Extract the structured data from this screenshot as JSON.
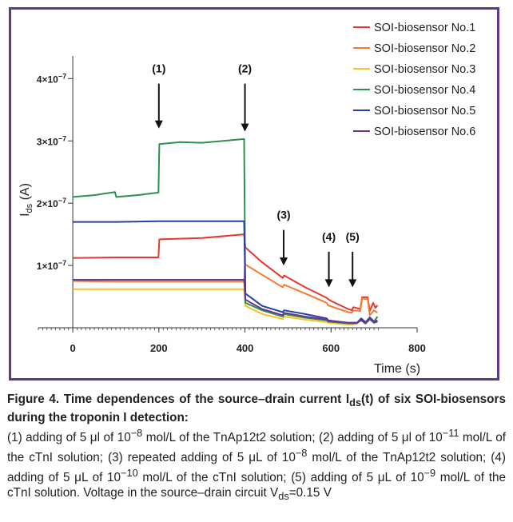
{
  "chart_data": {
    "type": "line",
    "xlabel": "Time (s)",
    "ylabel_main": "I",
    "ylabel_sub": "ds",
    "ylabel_unit": " (A)",
    "xlim": [
      -80,
      800
    ],
    "ylim": [
      0,
      4.3e-07
    ],
    "x_ticks": [
      0,
      200,
      400,
      600,
      800
    ],
    "x_tick_labels": [
      "0",
      "200",
      "400",
      "600",
      "800"
    ],
    "y_ticks": [
      1e-07,
      2e-07,
      3e-07,
      4e-07
    ],
    "y_tick_labels": [
      {
        "coef": "1×10",
        "exp": "−7"
      },
      {
        "coef": "2×10",
        "exp": "−7"
      },
      {
        "coef": "3×10",
        "exp": "−7"
      },
      {
        "coef": "4×10",
        "exp": "−7"
      }
    ],
    "legend_position": "top-right",
    "annotations": [
      {
        "label": "(1)",
        "x": 200,
        "y": 4.1e-07,
        "arrow_to": 3.2e-07
      },
      {
        "label": "(2)",
        "x": 400,
        "y": 4.1e-07,
        "arrow_to": 3.15e-07
      },
      {
        "label": "(3)",
        "x": 490,
        "y": 1.75e-07,
        "arrow_to": 1e-07
      },
      {
        "label": "(4)",
        "x": 595,
        "y": 1.4e-07,
        "arrow_to": 6.5e-08
      },
      {
        "label": "(5)",
        "x": 650,
        "y": 1.4e-07,
        "arrow_to": 6.5e-08
      }
    ],
    "series": [
      {
        "name": "SOI-biosensor No.1",
        "color": "#e8372c",
        "points": [
          [
            0,
            1.12e-07
          ],
          [
            100,
            1.13e-07
          ],
          [
            199,
            1.13e-07
          ],
          [
            201,
            1.42e-07
          ],
          [
            300,
            1.44e-07
          ],
          [
            398,
            1.5e-07
          ],
          [
            401,
            1.29e-07
          ],
          [
            440,
            1.05e-07
          ],
          [
            488,
            8e-08
          ],
          [
            491,
            8.4e-08
          ],
          [
            540,
            6.5e-08
          ],
          [
            590,
            4.8e-08
          ],
          [
            593,
            4.6e-08
          ],
          [
            600,
            4.3e-08
          ],
          [
            640,
            3e-08
          ],
          [
            648,
            2.8e-08
          ],
          [
            652,
            3.3e-08
          ],
          [
            668,
            3e-08
          ],
          [
            672,
            4.9e-08
          ],
          [
            685,
            4.9e-08
          ],
          [
            690,
            2.7e-08
          ],
          [
            698,
            4e-08
          ],
          [
            703,
            3.2e-08
          ],
          [
            708,
            3.6e-08
          ]
        ]
      },
      {
        "name": "SOI-biosensor No.2",
        "color": "#f47a37",
        "points": [
          [
            0,
            7.5e-08
          ],
          [
            100,
            7.4e-08
          ],
          [
            200,
            7.4e-08
          ],
          [
            300,
            7.4e-08
          ],
          [
            398,
            7.4e-08
          ],
          [
            400,
            1.02e-07
          ],
          [
            440,
            8.5e-08
          ],
          [
            488,
            6.5e-08
          ],
          [
            491,
            6.9e-08
          ],
          [
            540,
            5.5e-08
          ],
          [
            590,
            4e-08
          ],
          [
            593,
            3.6e-08
          ],
          [
            640,
            2.5e-08
          ],
          [
            648,
            2.4e-08
          ],
          [
            652,
            2.8e-08
          ],
          [
            668,
            2.7e-08
          ],
          [
            672,
            4.7e-08
          ],
          [
            685,
            4.6e-08
          ],
          [
            690,
            2e-08
          ],
          [
            700,
            2.8e-08
          ],
          [
            708,
            2.4e-08
          ]
        ]
      },
      {
        "name": "SOI-biosensor No.3",
        "color": "#f5c426",
        "points": [
          [
            0,
            6.2e-08
          ],
          [
            100,
            6.2e-08
          ],
          [
            200,
            6.2e-08
          ],
          [
            300,
            6.2e-08
          ],
          [
            398,
            6.2e-08
          ],
          [
            401,
            3.5e-08
          ],
          [
            440,
            2.2e-08
          ],
          [
            488,
            1.4e-08
          ],
          [
            491,
            1.8e-08
          ],
          [
            540,
            1.3e-08
          ],
          [
            590,
            9e-09
          ],
          [
            593,
            8e-09
          ],
          [
            640,
            5e-09
          ],
          [
            650,
            5e-09
          ],
          [
            660,
            7e-09
          ],
          [
            670,
            1.2e-08
          ],
          [
            680,
            6e-09
          ],
          [
            690,
            1.3e-08
          ],
          [
            700,
            8e-09
          ],
          [
            708,
            1e-08
          ]
        ]
      },
      {
        "name": "SOI-biosensor No.4",
        "color": "#2f8f4e",
        "points": [
          [
            0,
            2.1e-07
          ],
          [
            50,
            2.13e-07
          ],
          [
            98,
            2.18e-07
          ],
          [
            101,
            2.1e-07
          ],
          [
            150,
            2.13e-07
          ],
          [
            199,
            2.17e-07
          ],
          [
            201,
            2.95e-07
          ],
          [
            250,
            2.98e-07
          ],
          [
            300,
            2.97e-07
          ],
          [
            350,
            3e-07
          ],
          [
            398,
            3.03e-07
          ],
          [
            401,
            4e-08
          ],
          [
            440,
            2.8e-08
          ],
          [
            488,
            1.8e-08
          ],
          [
            491,
            2.2e-08
          ],
          [
            540,
            1.6e-08
          ],
          [
            590,
            1.2e-08
          ],
          [
            593,
            1e-08
          ],
          [
            640,
            7e-09
          ],
          [
            660,
            7e-09
          ],
          [
            670,
            1.4e-08
          ],
          [
            680,
            8e-09
          ],
          [
            690,
            1.7e-08
          ],
          [
            700,
            1e-08
          ],
          [
            708,
            1.8e-08
          ]
        ]
      },
      {
        "name": "SOI-biosensor No.5",
        "color": "#2b3fa8",
        "points": [
          [
            0,
            1.7e-07
          ],
          [
            100,
            1.7e-07
          ],
          [
            200,
            1.71e-07
          ],
          [
            300,
            1.71e-07
          ],
          [
            398,
            1.71e-07
          ],
          [
            401,
            5.5e-08
          ],
          [
            440,
            3.5e-08
          ],
          [
            488,
            2.5e-08
          ],
          [
            491,
            2.8e-08
          ],
          [
            540,
            2.2e-08
          ],
          [
            590,
            1.5e-08
          ],
          [
            593,
            1.2e-08
          ],
          [
            640,
            8e-09
          ],
          [
            660,
            8e-09
          ],
          [
            670,
            1.5e-08
          ],
          [
            680,
            9e-09
          ],
          [
            690,
            1.6e-08
          ],
          [
            700,
            9e-09
          ],
          [
            708,
            1.2e-08
          ]
        ]
      },
      {
        "name": "SOI-biosensor No.6",
        "color": "#6b3791",
        "points": [
          [
            0,
            7.7e-08
          ],
          [
            100,
            7.7e-08
          ],
          [
            200,
            7.7e-08
          ],
          [
            300,
            7.7e-08
          ],
          [
            398,
            7.7e-08
          ],
          [
            401,
            4.5e-08
          ],
          [
            440,
            3e-08
          ],
          [
            488,
            2e-08
          ],
          [
            491,
            2.4e-08
          ],
          [
            540,
            1.8e-08
          ],
          [
            590,
            1.3e-08
          ],
          [
            593,
            1.1e-08
          ],
          [
            640,
            8e-09
          ],
          [
            660,
            8e-09
          ],
          [
            670,
            1.2e-08
          ],
          [
            680,
            7e-09
          ],
          [
            690,
            1.4e-08
          ],
          [
            700,
            8e-09
          ],
          [
            708,
            1e-08
          ]
        ]
      }
    ]
  },
  "caption": {
    "title": "Figure 4. Time dependences of the source–drain current I",
    "title_sub": "ds",
    "title_rest": "(t) of six SOI-biosensors during the troponin I detection:",
    "body_1": "(1) adding of 5 μl of 10",
    "body_1_sup": "−8",
    "body_2": " mol/L of the TnAp12t2 solution; (2) adding of 5 μl of 10",
    "body_2_sup": "−11",
    "body_3": " mol/L of the cTnI solution; (3) repeated adding of 5 μL of 10",
    "body_3_sup": "−8",
    "body_4": " mol/L of the TnAp12t2 solution; (4) adding of 5 μL of 10",
    "body_4_sup": "−10",
    "body_5": " mol/L of the cTnI solution; (5) adding of 5 μL of 10",
    "body_5_sup": "−9",
    "body_6": " mol/L of the cTnI solution. Voltage in the source–drain circuit V",
    "body_6_sub": "ds",
    "body_7": "=0.15 V"
  }
}
